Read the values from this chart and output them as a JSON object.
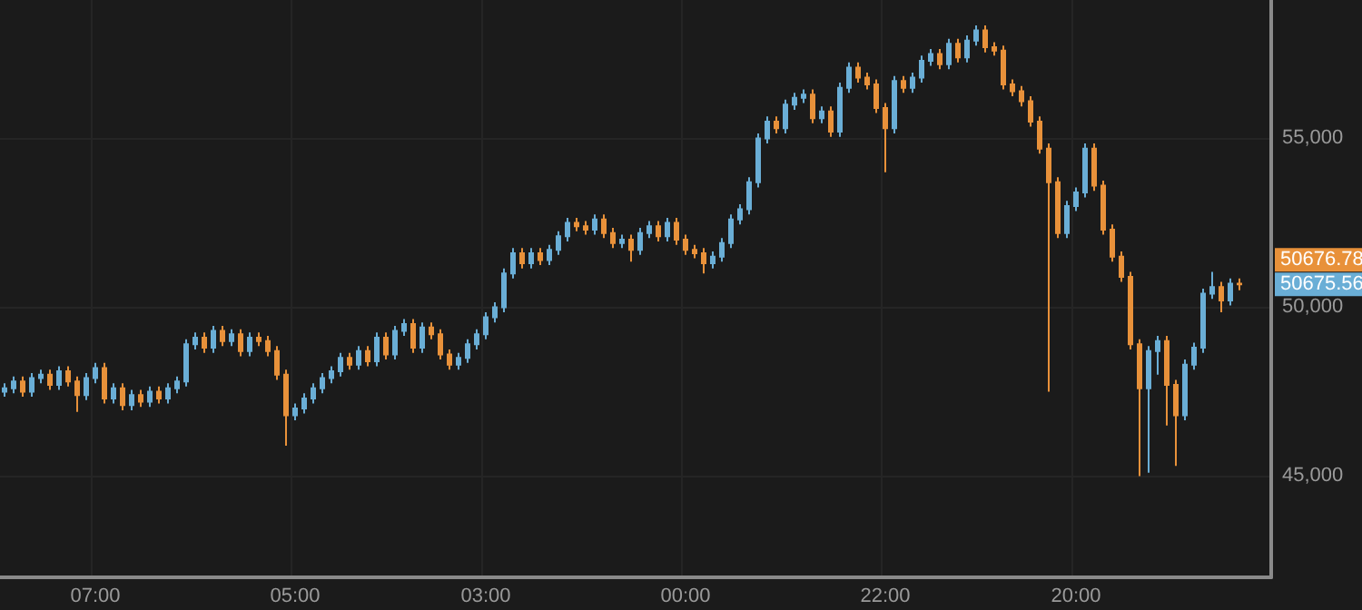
{
  "chart_data": {
    "type": "candlestick",
    "colors": [
      "#6aaed6",
      "#6aaed6",
      "#e8913a",
      "#6aaed6",
      "#6aaed6",
      "#e8913a",
      "#6aaed6",
      "#e8913a",
      "#e8913a",
      "#6aaed6",
      "#6aaed6",
      "#e8913a",
      "#6aaed6",
      "#e8913a",
      "#6aaed6",
      "#e8913a",
      "#6aaed6",
      "#e8913a",
      "#6aaed6",
      "#6aaed6",
      "#6aaed6",
      "#6aaed6",
      "#e8913a",
      "#6aaed6",
      "#e8913a",
      "#6aaed6",
      "#e8913a",
      "#6aaed6",
      "#e8913a",
      "#e8913a",
      "#e8913a",
      "#e8913a",
      "#6aaed6",
      "#6aaed6",
      "#6aaed6",
      "#6aaed6",
      "#6aaed6",
      "#6aaed6",
      "#e8913a",
      "#6aaed6",
      "#e8913a",
      "#6aaed6",
      "#e8913a",
      "#6aaed6",
      "#6aaed6",
      "#e8913a",
      "#6aaed6",
      "#e8913a",
      "#e8913a",
      "#e8913a",
      "#6aaed6",
      "#6aaed6",
      "#6aaed6",
      "#6aaed6",
      "#6aaed6",
      "#6aaed6",
      "#6aaed6",
      "#e8913a",
      "#6aaed6",
      "#e8913a",
      "#6aaed6",
      "#6aaed6",
      "#6aaed6",
      "#e8913a",
      "#e8913a",
      "#6aaed6",
      "#e8913a",
      "#e8913a",
      "#6aaed6",
      "#e8913a",
      "#6aaed6",
      "#6aaed6",
      "#e8913a",
      "#6aaed6",
      "#e8913a",
      "#e8913a",
      "#e8913a",
      "#e8913a",
      "#6aaed6",
      "#6aaed6",
      "#6aaed6",
      "#6aaed6",
      "#6aaed6",
      "#6aaed6",
      "#6aaed6",
      "#e8913a",
      "#6aaed6",
      "#6aaed6",
      "#6aaed6",
      "#e8913a",
      "#6aaed6",
      "#e8913a",
      "#6aaed6",
      "#6aaed6",
      "#e8913a",
      "#e8913a",
      "#e8913a",
      "#e8913a",
      "#6aaed6",
      "#e8913a",
      "#6aaed6",
      "#6aaed6",
      "#6aaed6",
      "#e8913a",
      "#6aaed6",
      "#e8913a",
      "#6aaed6",
      "#6aaed6",
      "#e8913a",
      "#e8913a",
      "#e8913a",
      "#e8913a",
      "#e8913a",
      "#e8913a",
      "#e8913a",
      "#e8913a",
      "#e8913a",
      "#6aaed6",
      "#6aaed6",
      "#6aaed6",
      "#e8913a",
      "#e8913a",
      "#e8913a",
      "#e8913a",
      "#e8913a",
      "#e8913a",
      "#6aaed6",
      "#6aaed6",
      "#e8913a",
      "#e8913a",
      "#6aaed6",
      "#6aaed6",
      "#6aaed6",
      "#6aaed6",
      "#e8913a",
      "#6aaed6",
      "#e8913a",
      null,
      null,
      null
    ],
    "categories": [
      null,
      null,
      null,
      null,
      null,
      null,
      null,
      null,
      null,
      null,
      "07:00",
      null,
      null,
      null,
      null,
      null,
      null,
      null,
      null,
      null,
      null,
      null,
      null,
      null,
      null,
      null,
      null,
      null,
      null,
      null,
      null,
      null,
      "05:00",
      null,
      null,
      null,
      null,
      null,
      null,
      null,
      null,
      null,
      null,
      null,
      null,
      null,
      null,
      null,
      null,
      null,
      null,
      null,
      null,
      "03:00",
      null,
      null,
      null,
      null,
      null,
      null,
      null,
      null,
      null,
      null,
      null,
      null,
      null,
      null,
      null,
      null,
      null,
      null,
      null,
      null,
      null,
      "00:00",
      null,
      null,
      null,
      null,
      null,
      null,
      null,
      null,
      null,
      null,
      null,
      null,
      null,
      null,
      null,
      null,
      null,
      null,
      null,
      null,
      null,
      "22:00",
      null,
      null,
      null,
      null,
      null,
      null,
      null,
      null,
      null,
      null,
      null,
      null,
      null,
      null,
      null,
      null,
      null,
      null,
      null,
      null,
      "20:00",
      null,
      null,
      null,
      null,
      null,
      null,
      null,
      null,
      null,
      null,
      null,
      null,
      null,
      null,
      null,
      null,
      null,
      null,
      null,
      null,
      null
    ],
    "ohlc": [
      [
        47500,
        47750,
        47350,
        47600
      ],
      [
        47600,
        47950,
        47450,
        47800
      ],
      [
        47800,
        47950,
        47350,
        47500
      ],
      [
        47500,
        48050,
        47350,
        47900
      ],
      [
        47900,
        48150,
        47750,
        48000
      ],
      [
        48000,
        48150,
        47550,
        47700
      ],
      [
        47700,
        48250,
        47550,
        48100
      ],
      [
        48100,
        48250,
        47650,
        47800
      ],
      [
        47800,
        47950,
        46900,
        47400
      ],
      [
        47400,
        48050,
        47250,
        47900
      ],
      [
        47900,
        48350,
        47750,
        48200
      ],
      [
        48200,
        48350,
        47150,
        47300
      ],
      [
        47300,
        47750,
        47150,
        47600
      ],
      [
        47600,
        47750,
        46950,
        47100
      ],
      [
        47100,
        47550,
        46950,
        47400
      ],
      [
        47400,
        47550,
        47050,
        47200
      ],
      [
        47200,
        47650,
        47050,
        47500
      ],
      [
        47500,
        47650,
        47150,
        47300
      ],
      [
        47300,
        47750,
        47150,
        47600
      ],
      [
        47600,
        47950,
        47450,
        47800
      ],
      [
        47800,
        49050,
        47650,
        48900
      ],
      [
        48900,
        49250,
        48750,
        49100
      ],
      [
        49100,
        49250,
        48650,
        48800
      ],
      [
        48800,
        49450,
        48650,
        49300
      ],
      [
        49300,
        49450,
        48850,
        49000
      ],
      [
        49000,
        49350,
        48850,
        49200
      ],
      [
        49200,
        49350,
        48550,
        48700
      ],
      [
        48700,
        49250,
        48550,
        49100
      ],
      [
        49100,
        49250,
        48850,
        49000
      ],
      [
        49000,
        49150,
        48550,
        48700
      ],
      [
        48700,
        48850,
        47850,
        48000
      ],
      [
        48000,
        48150,
        45900,
        46800
      ],
      [
        46800,
        47150,
        46650,
        47000
      ],
      [
        47000,
        47450,
        46850,
        47300
      ],
      [
        47300,
        47750,
        47150,
        47600
      ],
      [
        47600,
        48050,
        47450,
        47900
      ],
      [
        47900,
        48250,
        47750,
        48100
      ],
      [
        48100,
        48650,
        47950,
        48500
      ],
      [
        48500,
        48650,
        48150,
        48300
      ],
      [
        48300,
        48850,
        48150,
        48700
      ],
      [
        48700,
        48850,
        48250,
        48400
      ],
      [
        48400,
        49250,
        48250,
        49100
      ],
      [
        49100,
        49250,
        48450,
        48600
      ],
      [
        48600,
        49450,
        48450,
        49300
      ],
      [
        49300,
        49650,
        49150,
        49500
      ],
      [
        49500,
        49650,
        48650,
        48800
      ],
      [
        48800,
        49550,
        48650,
        49400
      ],
      [
        49400,
        49550,
        49050,
        49200
      ],
      [
        49200,
        49350,
        48450,
        48600
      ],
      [
        48600,
        48750,
        48150,
        48300
      ],
      [
        48300,
        48650,
        48150,
        48500
      ],
      [
        48500,
        49050,
        48350,
        48900
      ],
      [
        48900,
        49350,
        48750,
        49200
      ],
      [
        49200,
        49850,
        49050,
        49700
      ],
      [
        49700,
        50150,
        49550,
        50000
      ],
      [
        50000,
        51150,
        49850,
        51000
      ],
      [
        51000,
        51750,
        50850,
        51600
      ],
      [
        51600,
        51750,
        51150,
        51300
      ],
      [
        51300,
        51750,
        51150,
        51600
      ],
      [
        51600,
        51750,
        51250,
        51400
      ],
      [
        51400,
        51850,
        51250,
        51700
      ],
      [
        51700,
        52250,
        51550,
        52100
      ],
      [
        52100,
        52650,
        51950,
        52500
      ],
      [
        52500,
        52650,
        52250,
        52400
      ],
      [
        52400,
        52550,
        52150,
        52300
      ],
      [
        52300,
        52750,
        52150,
        52600
      ],
      [
        52600,
        52750,
        52050,
        52200
      ],
      [
        52200,
        52350,
        51750,
        51900
      ],
      [
        51900,
        52150,
        51750,
        52000
      ],
      [
        52000,
        52150,
        51350,
        51700
      ],
      [
        51700,
        52350,
        51550,
        52200
      ],
      [
        52200,
        52550,
        52050,
        52400
      ],
      [
        52400,
        52550,
        51950,
        52100
      ],
      [
        52100,
        52650,
        51950,
        52500
      ],
      [
        52500,
        52650,
        51850,
        52000
      ],
      [
        52000,
        52150,
        51550,
        51700
      ],
      [
        51700,
        51850,
        51450,
        51600
      ],
      [
        51600,
        51750,
        51000,
        51300
      ],
      [
        51300,
        51650,
        51150,
        51500
      ],
      [
        51500,
        52050,
        51350,
        51900
      ],
      [
        51900,
        52750,
        51750,
        52600
      ],
      [
        52600,
        53050,
        52450,
        52900
      ],
      [
        52900,
        53850,
        52750,
        53700
      ],
      [
        53700,
        55150,
        53550,
        55000
      ],
      [
        55000,
        55650,
        54850,
        55500
      ],
      [
        55500,
        55650,
        55150,
        55300
      ],
      [
        55300,
        56150,
        55150,
        56000
      ],
      [
        56000,
        56350,
        55850,
        56200
      ],
      [
        56200,
        56450,
        56050,
        56300
      ],
      [
        56300,
        56450,
        55450,
        55600
      ],
      [
        55600,
        55950,
        55450,
        55800
      ],
      [
        55800,
        55950,
        55050,
        55200
      ],
      [
        55200,
        56650,
        55050,
        56500
      ],
      [
        56500,
        57250,
        56350,
        57100
      ],
      [
        57100,
        57250,
        56650,
        56800
      ],
      [
        56800,
        56950,
        56450,
        56600
      ],
      [
        56600,
        56750,
        55750,
        55900
      ],
      [
        55900,
        56050,
        54000,
        55300
      ],
      [
        55300,
        56850,
        55150,
        56700
      ],
      [
        56700,
        56850,
        56350,
        56500
      ],
      [
        56500,
        56950,
        56350,
        56800
      ],
      [
        56800,
        57450,
        56650,
        57300
      ],
      [
        57300,
        57650,
        57150,
        57500
      ],
      [
        57500,
        57650,
        57050,
        57200
      ],
      [
        57200,
        57950,
        57050,
        57800
      ],
      [
        57800,
        57950,
        57250,
        57400
      ],
      [
        57400,
        58050,
        57250,
        57900
      ],
      [
        57900,
        58350,
        57750,
        58200
      ],
      [
        58200,
        58350,
        57550,
        57700
      ],
      [
        57700,
        57850,
        57450,
        57600
      ],
      [
        57600,
        57750,
        56450,
        56600
      ],
      [
        56600,
        56750,
        56250,
        56400
      ],
      [
        56400,
        56550,
        55950,
        56100
      ],
      [
        56100,
        56250,
        55350,
        55500
      ],
      [
        55500,
        55650,
        54550,
        54700
      ],
      [
        54700,
        54850,
        47500,
        53700
      ],
      [
        53700,
        53850,
        52050,
        52200
      ],
      [
        52200,
        53150,
        52050,
        53000
      ],
      [
        53000,
        53550,
        52850,
        53400
      ],
      [
        53400,
        54850,
        53250,
        54700
      ],
      [
        54700,
        54850,
        53450,
        53600
      ],
      [
        53600,
        53750,
        52150,
        52300
      ],
      [
        52300,
        52450,
        51350,
        51500
      ],
      [
        51500,
        51650,
        50750,
        50900
      ],
      [
        50900,
        51050,
        48750,
        48900
      ],
      [
        48900,
        49050,
        45000,
        47600
      ],
      [
        47600,
        48850,
        45100,
        48700
      ],
      [
        48700,
        49150,
        48000,
        49000
      ],
      [
        49000,
        49150,
        46500,
        47700
      ],
      [
        47700,
        47850,
        45300,
        46800
      ],
      [
        46800,
        48450,
        46650,
        48300
      ],
      [
        48300,
        48950,
        48150,
        48800
      ],
      [
        48800,
        50550,
        48650,
        50400
      ],
      [
        50400,
        51050,
        50250,
        50600
      ],
      [
        50600,
        50750,
        49850,
        50200
      ],
      [
        50200,
        50850,
        50050,
        50700
      ],
      [
        50700,
        50850,
        50500,
        50676
      ],
      null,
      null,
      null
    ],
    "ylim": [
      42000,
      59100
    ],
    "yticks": [
      {
        "value": 45000,
        "label": "45,000"
      },
      {
        "value": 50000,
        "label": "50,000"
      },
      {
        "value": 55000,
        "label": "55,000"
      }
    ],
    "grid": true,
    "annotations": [
      "50676.78",
      "50675.56"
    ]
  }
}
